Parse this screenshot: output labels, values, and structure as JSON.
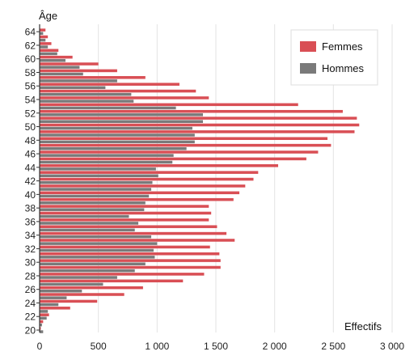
{
  "chart_data": {
    "type": "bar",
    "orientation": "horizontal",
    "title": "",
    "ylabel": "Âge",
    "xlabel": "Effectifs",
    "xlim": [
      0,
      3000
    ],
    "ylim": [
      20,
      65
    ],
    "x_ticks": [
      "0",
      "500",
      "1 000",
      "1 500",
      "2 000",
      "2 500",
      "3 000"
    ],
    "y_ticks": [
      "20",
      "22",
      "24",
      "26",
      "28",
      "30",
      "32",
      "34",
      "36",
      "38",
      "40",
      "42",
      "44",
      "46",
      "48",
      "50",
      "52",
      "54",
      "56",
      "58",
      "60",
      "62",
      "64"
    ],
    "grid": "vertical",
    "legend_position": "top-right",
    "categories": [
      20,
      21,
      22,
      23,
      24,
      25,
      26,
      27,
      28,
      29,
      30,
      31,
      32,
      33,
      34,
      35,
      36,
      37,
      38,
      39,
      40,
      41,
      42,
      43,
      44,
      45,
      46,
      47,
      48,
      49,
      50,
      51,
      52,
      53,
      54,
      55,
      56,
      57,
      58,
      59,
      60,
      61,
      62,
      63,
      64
    ],
    "series": [
      {
        "name": "Femmes",
        "color": "#d94f55",
        "values": [
          10,
          30,
          80,
          260,
          490,
          720,
          880,
          1220,
          1400,
          1540,
          1540,
          1530,
          1450,
          1660,
          1590,
          1510,
          1440,
          1460,
          1440,
          1650,
          1700,
          1750,
          1820,
          1860,
          2030,
          2270,
          2370,
          2480,
          2450,
          2680,
          2720,
          2700,
          2580,
          2200,
          1440,
          1330,
          1190,
          900,
          660,
          500,
          280,
          160,
          100,
          70,
          50
        ]
      },
      {
        "name": "Hommes",
        "color": "#7a7a7a",
        "values": [
          30,
          20,
          60,
          70,
          160,
          230,
          360,
          540,
          660,
          810,
          900,
          980,
          970,
          1000,
          950,
          810,
          840,
          760,
          890,
          900,
          930,
          950,
          960,
          1010,
          990,
          1130,
          1140,
          1250,
          1320,
          1320,
          1300,
          1390,
          1390,
          1160,
          800,
          780,
          560,
          660,
          370,
          340,
          220,
          150,
          70,
          50,
          30
        ]
      }
    ]
  }
}
